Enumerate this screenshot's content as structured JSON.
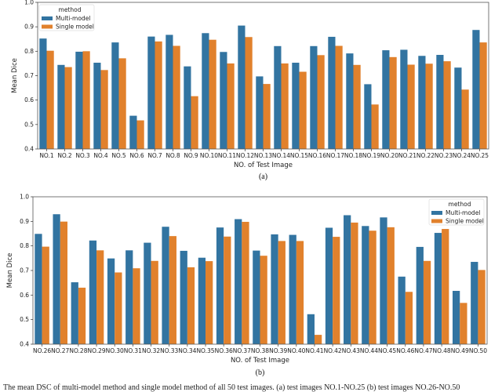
{
  "colors": {
    "Multi-model": "#3274a1",
    "Single model": "#e1812c"
  },
  "chart_data": [
    {
      "type": "bar",
      "subtitle": "(a)",
      "xlabel": "NO. of Test Image",
      "ylabel": "Mean Dice",
      "ylim": [
        0.4,
        1.0
      ],
      "yticks": [
        "0.4",
        "0.5",
        "0.6",
        "0.7",
        "0.8",
        "0.9",
        "1.0"
      ],
      "legend": {
        "title": "method",
        "placement": "top-left"
      },
      "categories": [
        "NO.1",
        "NO.2",
        "NO.3",
        "NO.4",
        "NO.5",
        "NO.6",
        "NO.7",
        "NO.8",
        "NO.9",
        "NO.10",
        "NO.11",
        "NO.12",
        "NO.13",
        "NO.14",
        "NO.15",
        "NO.16",
        "NO.17",
        "NO.18",
        "NO.19",
        "NO.20",
        "NO.21",
        "NO.22",
        "NO.23",
        "NO.24",
        "NO.25"
      ],
      "series": [
        {
          "name": "Multi-model",
          "values": [
            0.852,
            0.744,
            0.798,
            0.753,
            0.836,
            0.536,
            0.86,
            0.867,
            0.738,
            0.874,
            0.797,
            0.905,
            0.697,
            0.821,
            0.753,
            0.821,
            0.859,
            0.791,
            0.665,
            0.804,
            0.806,
            0.781,
            0.785,
            0.733,
            0.887
          ]
        },
        {
          "name": "Single model",
          "values": [
            0.802,
            0.735,
            0.8,
            0.723,
            0.771,
            0.517,
            0.84,
            0.822,
            0.616,
            0.847,
            0.75,
            0.858,
            0.666,
            0.75,
            0.716,
            0.784,
            0.822,
            0.744,
            0.582,
            0.776,
            0.745,
            0.749,
            0.759,
            0.643,
            0.836
          ]
        }
      ]
    },
    {
      "type": "bar",
      "subtitle": "(b)",
      "xlabel": "NO. of Test Image",
      "ylabel": "Mean Dice",
      "ylim": [
        0.4,
        1.0
      ],
      "yticks": [
        "0.4",
        "0.5",
        "0.6",
        "0.7",
        "0.8",
        "0.9",
        "1.0"
      ],
      "legend": {
        "title": "method",
        "placement": "top-right"
      },
      "categories": [
        "NO.26",
        "NO.27",
        "NO.28",
        "NO.29",
        "NO.30",
        "NO.31",
        "NO.32",
        "NO.33",
        "NO.34",
        "NO.35",
        "NO.36",
        "NO.37",
        "NO.38",
        "NO.39",
        "NO.40",
        "NO.41",
        "NO.42",
        "NO.43",
        "NO.44",
        "NO.45",
        "NO.46",
        "NO.47",
        "NO.48",
        "NO.49",
        "NO.50"
      ],
      "series": [
        {
          "name": "Multi-model",
          "values": [
            0.849,
            0.929,
            0.652,
            0.822,
            0.749,
            0.782,
            0.813,
            0.878,
            0.78,
            0.752,
            0.875,
            0.909,
            0.781,
            0.847,
            0.845,
            0.522,
            0.874,
            0.925,
            0.881,
            0.916,
            0.675,
            0.796,
            0.853,
            0.617,
            0.735
          ]
        },
        {
          "name": "Single model",
          "values": [
            0.797,
            0.899,
            0.63,
            0.782,
            0.692,
            0.709,
            0.739,
            0.84,
            0.713,
            0.738,
            0.838,
            0.898,
            0.76,
            0.82,
            0.82,
            0.438,
            0.837,
            0.895,
            0.862,
            0.876,
            0.613,
            0.739,
            0.869,
            0.568,
            0.702
          ]
        }
      ]
    }
  ],
  "caption": "The mean DSC of multi-model method and single model method of all 50 test images. (a) test images NO.1-NO.25 (b) test images NO.26-NO.50"
}
